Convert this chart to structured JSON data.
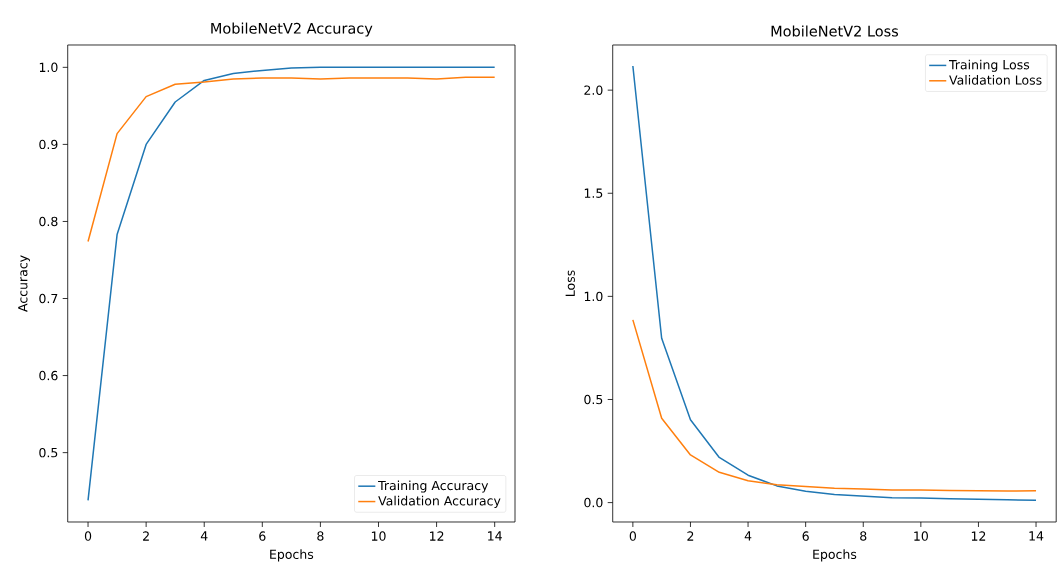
{
  "chart_data": [
    {
      "type": "line",
      "title": "MobileNetV2 Accuracy",
      "xlabel": "Epochs",
      "ylabel": "Accuracy",
      "x": [
        0,
        1,
        2,
        3,
        4,
        5,
        6,
        7,
        8,
        9,
        10,
        11,
        12,
        13,
        14
      ],
      "xlim": [
        -0.7,
        14.7
      ],
      "xticks": [
        0,
        2,
        4,
        6,
        8,
        10,
        12,
        14
      ],
      "ylim": [
        0.41,
        1.029
      ],
      "yticks": [
        0.5,
        0.6,
        0.7,
        0.8,
        0.9,
        {
          "value": 1,
          "label": "1.0"
        }
      ],
      "legend": "bottom right",
      "series": [
        {
          "name": "Training Accuracy",
          "color": "#1f77b4",
          "values": [
            0.438,
            0.783,
            0.9,
            0.955,
            0.983,
            0.992,
            0.996,
            0.999,
            1.0,
            1.0,
            1.0,
            1.0,
            1.0,
            1.0,
            1.0
          ]
        },
        {
          "name": "Validation Accuracy",
          "color": "#ff7f0e",
          "values": [
            0.774,
            0.914,
            0.962,
            0.978,
            0.981,
            0.985,
            0.986,
            0.986,
            0.985,
            0.986,
            0.986,
            0.986,
            0.985,
            0.987,
            0.987
          ]
        }
      ]
    },
    {
      "type": "line",
      "title": "MobileNetV2 Loss",
      "xlabel": "Epochs",
      "ylabel": "Loss",
      "x": [
        0,
        1,
        2,
        3,
        4,
        5,
        6,
        7,
        8,
        9,
        10,
        11,
        12,
        13,
        14
      ],
      "xlim": [
        -0.7,
        14.7
      ],
      "xticks": [
        0,
        2,
        4,
        6,
        8,
        10,
        12,
        14
      ],
      "ylim": [
        -0.094,
        2.219
      ],
      "yticks": [
        {
          "value": 0,
          "label": "0.0"
        },
        0.5,
        {
          "value": 1,
          "label": "1.0"
        },
        1.5,
        {
          "value": 2,
          "label": "2.0"
        }
      ],
      "legend": "top right",
      "series": [
        {
          "name": "Training Loss",
          "color": "#1f77b4",
          "values": [
            2.117,
            0.797,
            0.402,
            0.219,
            0.133,
            0.081,
            0.055,
            0.039,
            0.031,
            0.023,
            0.022,
            0.019,
            0.016,
            0.014,
            0.011
          ]
        },
        {
          "name": "Validation Loss",
          "color": "#ff7f0e",
          "values": [
            0.886,
            0.409,
            0.231,
            0.147,
            0.106,
            0.086,
            0.078,
            0.069,
            0.066,
            0.061,
            0.061,
            0.059,
            0.058,
            0.056,
            0.058
          ]
        }
      ]
    }
  ]
}
